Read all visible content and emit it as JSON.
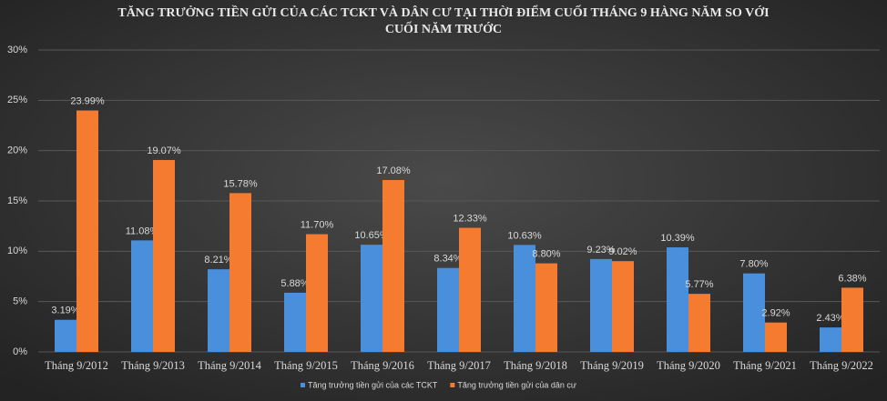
{
  "chart_data": {
    "type": "bar",
    "title": [
      "TĂNG TRƯỞNG TIỀN GỬI CỦA CÁC TCKT VÀ DÂN CƯ TẠI THỜI ĐIỂM CUỐI THÁNG 9 HÀNG NĂM SO VỚI",
      "CUỐI NĂM TRƯỚC"
    ],
    "categories": [
      "Tháng 9/2012",
      "Tháng 9/2013",
      "Tháng 9/2014",
      "Tháng 9/2015",
      "Tháng 9/2016",
      "Tháng 9/2017",
      "Tháng 9/2018",
      "Tháng 9/2019",
      "Tháng 9/2020",
      "Tháng 9/2021",
      "Tháng 9/2022"
    ],
    "series": [
      {
        "name": "Tăng trưởng tiền gửi của các TCKT",
        "color": "#4a8fdc",
        "values": [
          3.19,
          11.08,
          8.21,
          5.88,
          10.65,
          8.34,
          10.63,
          9.23,
          10.39,
          7.8,
          2.43
        ],
        "value_labels": [
          "3.19%",
          "11.08%",
          "8.21%",
          "5.88%",
          "10.65%",
          "8.34%",
          "10.63%",
          "9.23%",
          "10.39%",
          "7.80%",
          "2.43%"
        ]
      },
      {
        "name": "Tăng trưởng tiền gửi của dân cư",
        "color": "#f47b30",
        "values": [
          23.99,
          19.07,
          15.78,
          11.7,
          17.08,
          12.33,
          8.8,
          9.02,
          5.77,
          2.92,
          6.38
        ],
        "value_labels": [
          "23.99%",
          "19.07%",
          "15.78%",
          "11.70%",
          "17.08%",
          "12.33%",
          "8.80%",
          "9.02%",
          "5.77%",
          "2.92%",
          "6.38%"
        ]
      }
    ],
    "ylim": [
      0,
      30
    ],
    "yticks": [
      {
        "value": 0,
        "label": "0%"
      },
      {
        "value": 5,
        "label": "5%"
      },
      {
        "value": 10,
        "label": "10%"
      },
      {
        "value": 15,
        "label": "15%"
      },
      {
        "value": 20,
        "label": "20%"
      },
      {
        "value": 25,
        "label": "25%"
      },
      {
        "value": 30,
        "label": "30%"
      }
    ],
    "grid": true,
    "legend": "bottom"
  }
}
